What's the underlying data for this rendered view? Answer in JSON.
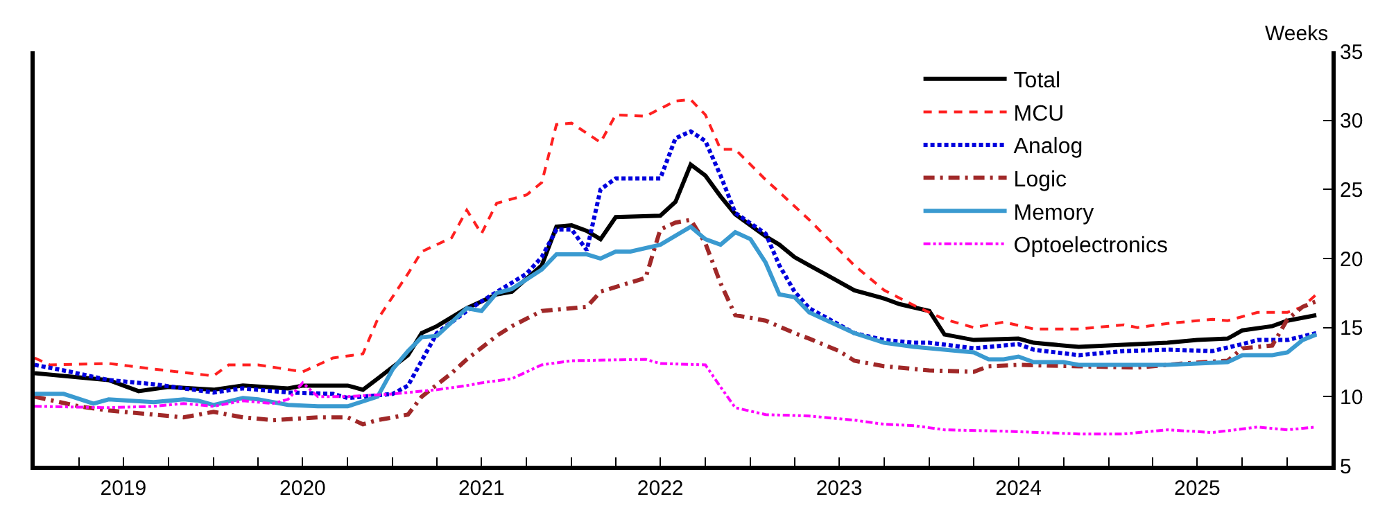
{
  "chart_data": {
    "type": "line",
    "ylabel": "Weeks",
    "xlim": [
      "2019-01",
      "2026-04"
    ],
    "xticks": [
      {
        "value": "2019-01",
        "label": null
      },
      {
        "value": "2019-04",
        "label": null
      },
      {
        "value": "2019-07",
        "label": "2019"
      },
      {
        "value": "2019-10",
        "label": null
      },
      {
        "value": "2020-01",
        "label": null
      },
      {
        "value": "2020-04",
        "label": null
      },
      {
        "value": "2020-07",
        "label": "2020"
      },
      {
        "value": "2020-10",
        "label": null
      },
      {
        "value": "2021-01",
        "label": null
      },
      {
        "value": "2021-04",
        "label": null
      },
      {
        "value": "2021-07",
        "label": "2021"
      },
      {
        "value": "2021-10",
        "label": null
      },
      {
        "value": "2022-01",
        "label": null
      },
      {
        "value": "2022-04",
        "label": null
      },
      {
        "value": "2022-07",
        "label": "2022"
      },
      {
        "value": "2022-10",
        "label": null
      },
      {
        "value": "2023-01",
        "label": null
      },
      {
        "value": "2023-04",
        "label": null
      },
      {
        "value": "2023-07",
        "label": "2023"
      },
      {
        "value": "2023-10",
        "label": null
      },
      {
        "value": "2024-01",
        "label": null
      },
      {
        "value": "2024-04",
        "label": null
      },
      {
        "value": "2024-07",
        "label": "2024"
      },
      {
        "value": "2024-10",
        "label": null
      },
      {
        "value": "2025-01",
        "label": null
      },
      {
        "value": "2025-04",
        "label": null
      },
      {
        "value": "2025-07",
        "label": "2025"
      },
      {
        "value": "2025-10",
        "label": null
      },
      {
        "value": "2026-01",
        "label": null
      },
      {
        "value": "2026-04",
        "label": null
      }
    ],
    "ylim": [
      5,
      35
    ],
    "yticks": [
      5,
      10,
      15,
      20,
      25,
      30,
      35
    ],
    "legend": "top right",
    "marker": "none",
    "series": [
      {
        "name": "Total",
        "color": "#000000",
        "line_style": "solid",
        "x": [
          "2019-01",
          "2019-04",
          "2019-06",
          "2019-08",
          "2019-10",
          "2020-01",
          "2020-03",
          "2020-06",
          "2020-07",
          "2020-10",
          "2020-11",
          "2020-12",
          "2021-02",
          "2021-03",
          "2021-04",
          "2021-06",
          "2021-08",
          "2021-09",
          "2021-11",
          "2021-12",
          "2022-01",
          "2022-02",
          "2022-03",
          "2022-04",
          "2022-07",
          "2022-08",
          "2022-09",
          "2022-10",
          "2022-11",
          "2022-12",
          "2023-02",
          "2023-03",
          "2023-04",
          "2023-05",
          "2023-06",
          "2023-08",
          "2023-10",
          "2023-11",
          "2024-01",
          "2024-02",
          "2024-04",
          "2024-07",
          "2024-08",
          "2024-11",
          "2025-05",
          "2025-07",
          "2025-09",
          "2025-10",
          "2025-12",
          "2026-01",
          "2026-03"
        ],
        "values": [
          11.7,
          11.4,
          11.2,
          10.4,
          10.7,
          10.5,
          10.8,
          10.6,
          10.8,
          10.8,
          10.5,
          11.3,
          13.0,
          14.6,
          15.1,
          16.4,
          17.4,
          17.6,
          19.5,
          22.3,
          22.4,
          22.0,
          21.4,
          23.0,
          23.1,
          24.1,
          26.8,
          26.0,
          24.5,
          23.2,
          21.6,
          21.0,
          20.1,
          19.5,
          18.9,
          17.7,
          17.1,
          16.7,
          16.2,
          14.5,
          14.1,
          14.2,
          13.9,
          13.6,
          13.9,
          14.1,
          14.2,
          14.8,
          15.1,
          15.5,
          15.9
        ]
      },
      {
        "name": "MCU",
        "color": "#ff2020",
        "line_style": "dashed",
        "x": [
          "2019-01",
          "2019-02",
          "2019-06",
          "2019-09",
          "2020-01",
          "2020-02",
          "2020-04",
          "2020-07",
          "2020-09",
          "2020-11",
          "2020-12",
          "2021-02",
          "2021-03",
          "2021-05",
          "2021-06",
          "2021-07",
          "2021-08",
          "2021-10",
          "2021-11",
          "2021-12",
          "2022-01",
          "2022-03",
          "2022-04",
          "2022-06",
          "2022-08",
          "2022-09",
          "2022-10",
          "2022-11",
          "2022-12",
          "2023-02",
          "2023-03",
          "2023-05",
          "2023-08",
          "2023-10",
          "2023-12",
          "2024-01",
          "2024-02",
          "2024-04",
          "2024-06",
          "2024-08",
          "2024-11",
          "2025-02",
          "2025-03",
          "2025-05",
          "2025-08",
          "2025-09",
          "2025-11",
          "2026-01",
          "2026-02",
          "2026-03"
        ],
        "values": [
          12.8,
          12.3,
          12.4,
          12.0,
          11.5,
          12.3,
          12.3,
          11.8,
          12.8,
          13.1,
          15.6,
          18.9,
          20.5,
          21.5,
          23.5,
          21.8,
          24.0,
          24.6,
          25.5,
          29.7,
          29.8,
          28.4,
          30.4,
          30.3,
          31.4,
          31.5,
          30.4,
          27.9,
          27.9,
          25.7,
          24.8,
          22.8,
          19.5,
          17.7,
          16.6,
          16.1,
          15.6,
          15.0,
          15.4,
          14.9,
          14.9,
          15.2,
          15.0,
          15.3,
          15.6,
          15.5,
          16.1,
          16.1,
          16.5,
          17.4
        ]
      },
      {
        "name": "Analog",
        "color": "#0000dd",
        "line_style": "dotted",
        "x": [
          "2019-01",
          "2019-03",
          "2019-06",
          "2019-09",
          "2020-01",
          "2020-03",
          "2020-06",
          "2020-09",
          "2020-10",
          "2021-01",
          "2021-02",
          "2021-03",
          "2021-04",
          "2021-06",
          "2021-07",
          "2021-10",
          "2021-11",
          "2021-12",
          "2022-01",
          "2022-02",
          "2022-03",
          "2022-04",
          "2022-07",
          "2022-08",
          "2022-09",
          "2022-10",
          "2022-11",
          "2022-12",
          "2023-02",
          "2023-03",
          "2023-04",
          "2023-05",
          "2023-08",
          "2023-10",
          "2023-12",
          "2024-01",
          "2024-04",
          "2024-07",
          "2024-08",
          "2024-11",
          "2025-02",
          "2025-05",
          "2025-08",
          "2025-10",
          "2025-11",
          "2026-01",
          "2026-03"
        ],
        "values": [
          12.3,
          11.9,
          11.2,
          10.9,
          10.3,
          10.6,
          10.3,
          10.2,
          9.9,
          10.2,
          10.8,
          12.6,
          14.6,
          16.2,
          16.9,
          18.9,
          20.1,
          22.1,
          22.1,
          20.6,
          25.0,
          25.8,
          25.8,
          28.7,
          29.2,
          28.5,
          26.0,
          23.3,
          21.8,
          19.5,
          17.6,
          16.4,
          14.6,
          14.1,
          13.9,
          13.9,
          13.5,
          13.8,
          13.4,
          13.0,
          13.3,
          13.4,
          13.3,
          13.8,
          14.1,
          14.1,
          14.6
        ]
      },
      {
        "name": "Logic",
        "color": "#a02828",
        "line_style": "dashdot",
        "x": [
          "2019-01",
          "2019-04",
          "2019-06",
          "2019-09",
          "2019-11",
          "2020-01",
          "2020-03",
          "2020-05",
          "2020-08",
          "2020-10",
          "2020-11",
          "2020-12",
          "2021-02",
          "2021-03",
          "2021-05",
          "2021-06",
          "2021-08",
          "2021-09",
          "2021-11",
          "2022-02",
          "2022-03",
          "2022-06",
          "2022-07",
          "2022-08",
          "2022-09",
          "2022-10",
          "2022-11",
          "2022-12",
          "2023-02",
          "2023-04",
          "2023-05",
          "2023-07",
          "2023-08",
          "2023-10",
          "2023-12",
          "2024-01",
          "2024-04",
          "2024-05",
          "2024-07",
          "2024-11",
          "2025-03",
          "2025-06",
          "2025-09",
          "2025-10",
          "2025-12",
          "2026-01",
          "2026-02",
          "2026-03"
        ],
        "values": [
          10.0,
          9.3,
          9.0,
          8.7,
          8.5,
          8.9,
          8.5,
          8.3,
          8.5,
          8.5,
          8.0,
          8.3,
          8.7,
          10.0,
          11.7,
          12.7,
          14.4,
          15.1,
          16.2,
          16.5,
          17.6,
          18.6,
          22.1,
          22.6,
          22.8,
          21.1,
          18.2,
          15.9,
          15.5,
          14.6,
          14.2,
          13.3,
          12.6,
          12.2,
          12.0,
          11.9,
          11.8,
          12.2,
          12.3,
          12.2,
          12.1,
          12.4,
          12.6,
          13.5,
          13.7,
          15.6,
          16.5,
          16.9
        ]
      },
      {
        "name": "Memory",
        "color": "#3a9ad0",
        "line_style": "solid",
        "x": [
          "2019-01",
          "2019-03",
          "2019-05",
          "2019-06",
          "2019-09",
          "2019-11",
          "2019-12",
          "2020-01",
          "2020-03",
          "2020-04",
          "2020-06",
          "2020-08",
          "2020-10",
          "2020-12",
          "2021-01",
          "2021-02",
          "2021-03",
          "2021-04",
          "2021-06",
          "2021-07",
          "2021-08",
          "2021-09",
          "2021-11",
          "2021-12",
          "2022-02",
          "2022-03",
          "2022-04",
          "2022-05",
          "2022-07",
          "2022-09",
          "2022-10",
          "2022-11",
          "2022-12",
          "2023-01",
          "2023-02",
          "2023-03",
          "2023-04",
          "2023-05",
          "2023-08",
          "2023-10",
          "2023-12",
          "2024-01",
          "2024-04",
          "2024-05",
          "2024-06",
          "2024-07",
          "2024-08",
          "2024-10",
          "2024-11",
          "2025-03",
          "2025-05",
          "2025-09",
          "2025-10",
          "2025-12",
          "2026-01",
          "2026-02",
          "2026-03"
        ],
        "values": [
          10.2,
          10.2,
          9.5,
          9.8,
          9.6,
          9.8,
          9.7,
          9.4,
          9.9,
          9.8,
          9.4,
          9.3,
          9.3,
          10.0,
          12.0,
          13.3,
          14.3,
          14.4,
          16.4,
          16.2,
          17.5,
          17.8,
          19.2,
          20.3,
          20.3,
          20.0,
          20.5,
          20.5,
          21.0,
          22.3,
          21.4,
          21.0,
          21.9,
          21.4,
          19.7,
          17.4,
          17.2,
          16.1,
          14.6,
          13.9,
          13.6,
          13.5,
          13.2,
          12.7,
          12.7,
          12.9,
          12.5,
          12.5,
          12.3,
          12.3,
          12.3,
          12.5,
          13.0,
          13.0,
          13.2,
          14.1,
          14.5
        ]
      },
      {
        "name": "Optoelectronics",
        "color": "#ff00ff",
        "line_style": "dashdotdot",
        "x": [
          "2019-01",
          "2019-06",
          "2019-09",
          "2019-11",
          "2020-01",
          "2020-03",
          "2020-05",
          "2020-06",
          "2020-07",
          "2020-08",
          "2020-10",
          "2021-01",
          "2021-04",
          "2021-06",
          "2021-07",
          "2021-09",
          "2021-11",
          "2022-01",
          "2022-06",
          "2022-07",
          "2022-10",
          "2022-11",
          "2022-12",
          "2023-02",
          "2023-05",
          "2023-08",
          "2023-10",
          "2023-12",
          "2024-02",
          "2024-06",
          "2024-11",
          "2025-02",
          "2025-05",
          "2025-08",
          "2025-11",
          "2026-01",
          "2026-03"
        ],
        "values": [
          9.3,
          9.2,
          9.3,
          9.5,
          9.3,
          9.7,
          9.5,
          9.8,
          11.0,
          10.0,
          10.0,
          10.2,
          10.5,
          10.8,
          11.0,
          11.3,
          12.3,
          12.6,
          12.7,
          12.4,
          12.3,
          10.7,
          9.2,
          8.7,
          8.6,
          8.3,
          8.0,
          7.9,
          7.6,
          7.5,
          7.3,
          7.3,
          7.6,
          7.4,
          7.8,
          7.6,
          7.8
        ]
      }
    ]
  }
}
